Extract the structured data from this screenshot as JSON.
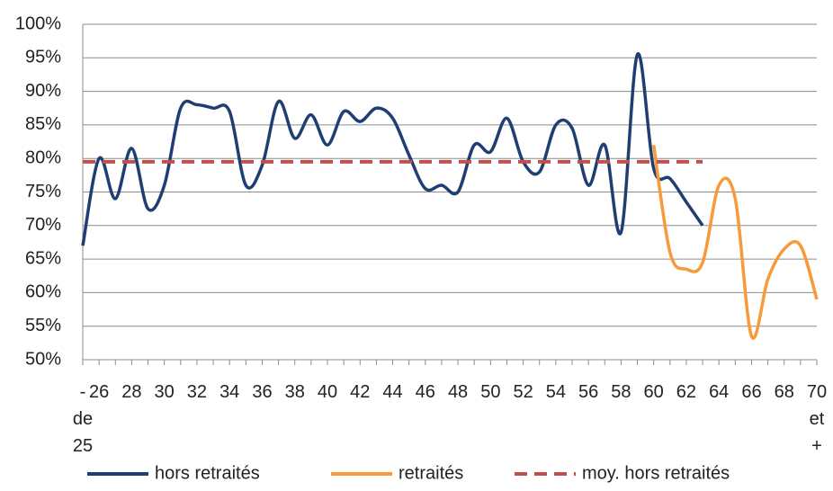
{
  "chart_data": {
    "type": "line",
    "categories": [
      "- de 25",
      "26",
      null,
      "28",
      null,
      "30",
      null,
      "32",
      null,
      "34",
      null,
      "36",
      null,
      "38",
      null,
      "40",
      null,
      "42",
      null,
      "44",
      null,
      "46",
      null,
      "48",
      null,
      "50",
      null,
      "52",
      null,
      "54",
      null,
      "56",
      null,
      "58",
      null,
      "60",
      null,
      "62",
      null,
      "64",
      null,
      "66",
      null,
      "68",
      null,
      "70 et +"
    ],
    "series": [
      {
        "name": "hors retraités",
        "color": "#1f3f73",
        "style": "solid",
        "values": [
          67,
          80,
          74,
          81.5,
          72.5,
          76,
          87.5,
          88,
          87.5,
          87,
          76,
          79,
          88.5,
          83,
          86.5,
          82,
          87,
          85.5,
          87.5,
          86,
          80.5,
          75.5,
          76,
          75,
          82,
          81,
          86,
          79.5,
          78,
          85,
          84.5,
          76,
          82,
          69,
          95.5,
          78.5,
          77,
          73.5,
          70,
          null,
          null,
          null,
          null,
          null,
          null,
          null
        ]
      },
      {
        "name": "retraités",
        "color": "#f79a3a",
        "style": "solid",
        "values": [
          null,
          null,
          null,
          null,
          null,
          null,
          null,
          null,
          null,
          null,
          null,
          null,
          null,
          null,
          null,
          null,
          null,
          null,
          null,
          null,
          null,
          null,
          null,
          null,
          null,
          null,
          null,
          null,
          null,
          null,
          null,
          null,
          null,
          null,
          null,
          82,
          66,
          63.5,
          64.5,
          76,
          74,
          53.5,
          62,
          66.5,
          67,
          59
        ]
      },
      {
        "name": "moy. hors retraités",
        "color": "#c0504d",
        "style": "dashed",
        "values": [
          79.5,
          79.5,
          79.5,
          79.5,
          79.5,
          79.5,
          79.5,
          79.5,
          79.5,
          79.5,
          79.5,
          79.5,
          79.5,
          79.5,
          79.5,
          79.5,
          79.5,
          79.5,
          79.5,
          79.5,
          79.5,
          79.5,
          79.5,
          79.5,
          79.5,
          79.5,
          79.5,
          79.5,
          79.5,
          79.5,
          79.5,
          79.5,
          79.5,
          79.5,
          79.5,
          79.5,
          79.5,
          79.5,
          79.5,
          null,
          null,
          null,
          null,
          null,
          null,
          null
        ]
      }
    ],
    "ylim": [
      50,
      100
    ],
    "yticks": [
      {
        "value": 50,
        "label": "50%"
      },
      {
        "value": 55,
        "label": "55%"
      },
      {
        "value": 60,
        "label": "60%"
      },
      {
        "value": 65,
        "label": "65%"
      },
      {
        "value": 70,
        "label": "70%"
      },
      {
        "value": 75,
        "label": "75%"
      },
      {
        "value": 80,
        "label": "80%"
      },
      {
        "value": 85,
        "label": "85%"
      },
      {
        "value": 90,
        "label": "90%"
      },
      {
        "value": 95,
        "label": "95%"
      },
      {
        "value": 100,
        "label": "100%"
      }
    ],
    "grid": true,
    "legend": "bottom"
  }
}
